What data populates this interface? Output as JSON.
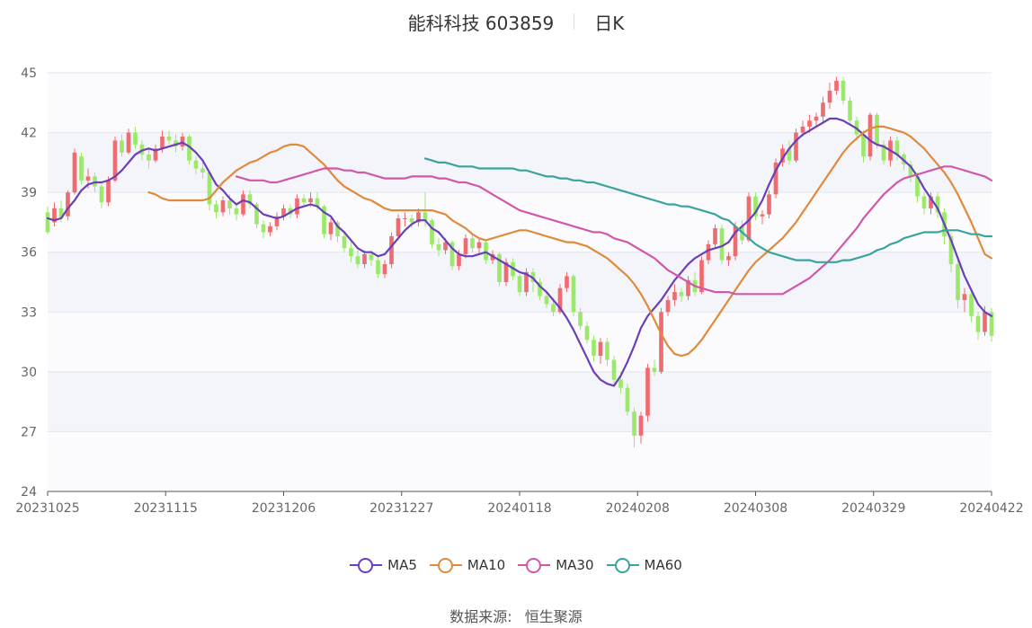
{
  "header": {
    "stock": "能科科技 603859",
    "period": "日K"
  },
  "source": {
    "label": "数据来源:",
    "value": "恒生聚源"
  },
  "colors": {
    "up": "#f06b6f",
    "down": "#9be86a",
    "MA5": "#6a3fb8",
    "MA10": "#e08a3c",
    "MA30": "#d058a8",
    "MA60": "#3aa39d"
  },
  "chart_data": {
    "type": "candlestick",
    "ylim": [
      24,
      45
    ],
    "y_ticks": [
      24,
      27,
      30,
      33,
      36,
      39,
      42,
      45
    ],
    "x_tick_labels": [
      "20231025",
      "20231115",
      "20231206",
      "20231227",
      "20240118",
      "20240208",
      "20240308",
      "20240329",
      "20240422"
    ],
    "grid": "horizontal alternating bands",
    "legend_placement": "bottom",
    "candles": [
      [
        38.0,
        37.0,
        38.3,
        36.9
      ],
      [
        37.5,
        38.2,
        38.5,
        37.3
      ],
      [
        38.2,
        37.7,
        38.6,
        37.5
      ],
      [
        37.8,
        39.0,
        39.1,
        37.6
      ],
      [
        39.0,
        41.0,
        41.2,
        38.9
      ],
      [
        40.8,
        39.6,
        41.0,
        39.4
      ],
      [
        39.6,
        39.8,
        40.2,
        39.2
      ],
      [
        39.8,
        39.3,
        40.0,
        39.0
      ],
      [
        39.3,
        38.5,
        39.4,
        38.2
      ],
      [
        38.5,
        39.6,
        39.8,
        38.3
      ],
      [
        39.6,
        41.6,
        41.8,
        39.5
      ],
      [
        41.6,
        41.0,
        41.9,
        40.8
      ],
      [
        41.0,
        42.0,
        42.2,
        40.9
      ],
      [
        42.0,
        41.4,
        42.3,
        41.2
      ],
      [
        41.4,
        40.9,
        41.6,
        40.6
      ],
      [
        40.9,
        40.6,
        41.2,
        40.2
      ],
      [
        40.6,
        41.2,
        41.4,
        40.5
      ],
      [
        41.2,
        41.8,
        42.1,
        41.0
      ],
      [
        41.8,
        41.6,
        42.1,
        41.4
      ],
      [
        41.6,
        41.3,
        41.9,
        41.0
      ],
      [
        41.3,
        41.8,
        42.0,
        41.1
      ],
      [
        41.8,
        40.6,
        41.9,
        40.4
      ],
      [
        40.6,
        40.2,
        40.8,
        39.9
      ],
      [
        40.2,
        40.0,
        40.5,
        39.7
      ],
      [
        40.0,
        38.4,
        40.1,
        38.1
      ],
      [
        38.4,
        38.0,
        38.6,
        37.7
      ],
      [
        38.0,
        38.6,
        38.8,
        37.8
      ],
      [
        38.6,
        38.2,
        38.9,
        37.9
      ],
      [
        38.2,
        37.9,
        38.4,
        37.6
      ],
      [
        37.9,
        38.9,
        39.1,
        37.8
      ],
      [
        38.9,
        38.4,
        39.1,
        38.2
      ],
      [
        38.4,
        37.4,
        38.5,
        37.2
      ],
      [
        37.4,
        37.0,
        37.6,
        36.7
      ],
      [
        37.0,
        37.3,
        37.5,
        36.8
      ],
      [
        37.3,
        37.8,
        38.0,
        37.1
      ],
      [
        37.8,
        38.2,
        38.4,
        37.6
      ],
      [
        38.2,
        37.9,
        38.4,
        37.7
      ],
      [
        37.9,
        38.7,
        38.9,
        37.7
      ],
      [
        38.7,
        38.5,
        38.9,
        38.3
      ],
      [
        38.5,
        38.7,
        39.0,
        38.3
      ],
      [
        38.7,
        38.3,
        39.0,
        38.1
      ],
      [
        38.3,
        36.9,
        38.4,
        36.7
      ],
      [
        36.9,
        37.5,
        37.7,
        36.6
      ],
      [
        37.5,
        36.8,
        37.6,
        36.5
      ],
      [
        36.8,
        36.2,
        37.0,
        36.0
      ],
      [
        36.2,
        35.8,
        36.5,
        35.5
      ],
      [
        35.8,
        35.4,
        36.1,
        35.2
      ],
      [
        35.4,
        35.9,
        36.1,
        35.2
      ],
      [
        35.9,
        35.6,
        36.1,
        35.3
      ],
      [
        35.6,
        34.9,
        35.8,
        34.7
      ],
      [
        34.9,
        35.4,
        35.6,
        34.7
      ],
      [
        35.4,
        36.8,
        37.0,
        35.2
      ],
      [
        36.8,
        37.7,
        37.9,
        36.6
      ],
      [
        37.7,
        37.7,
        38.0,
        37.3
      ],
      [
        37.7,
        37.5,
        37.9,
        37.2
      ],
      [
        37.5,
        38.0,
        38.2,
        37.3
      ],
      [
        38.0,
        37.6,
        39.0,
        37.3
      ],
      [
        37.6,
        36.4,
        37.7,
        36.2
      ],
      [
        36.4,
        36.1,
        36.7,
        35.8
      ],
      [
        36.1,
        36.5,
        36.7,
        35.9
      ],
      [
        36.5,
        35.3,
        36.6,
        35.1
      ],
      [
        35.3,
        35.9,
        36.1,
        35.1
      ],
      [
        35.9,
        36.7,
        36.9,
        35.7
      ],
      [
        36.7,
        36.2,
        36.9,
        36.0
      ],
      [
        36.2,
        36.5,
        36.7,
        35.9
      ],
      [
        36.5,
        35.6,
        36.6,
        35.4
      ],
      [
        35.6,
        35.9,
        36.1,
        35.4
      ],
      [
        35.9,
        34.5,
        36.0,
        34.3
      ],
      [
        34.5,
        35.5,
        35.7,
        34.3
      ],
      [
        35.5,
        34.8,
        35.7,
        34.6
      ],
      [
        34.8,
        34.0,
        34.9,
        33.8
      ],
      [
        34.0,
        35.0,
        35.2,
        33.8
      ],
      [
        35.0,
        34.5,
        35.2,
        34.0
      ],
      [
        34.5,
        33.8,
        34.7,
        33.6
      ],
      [
        33.8,
        33.4,
        34.0,
        33.2
      ],
      [
        33.4,
        33.0,
        33.7,
        32.8
      ],
      [
        33.0,
        34.2,
        34.4,
        32.9
      ],
      [
        34.2,
        34.8,
        35.0,
        34.0
      ],
      [
        34.8,
        33.0,
        34.9,
        32.8
      ],
      [
        33.0,
        32.3,
        33.2,
        32.1
      ],
      [
        32.3,
        31.6,
        32.5,
        31.4
      ],
      [
        31.6,
        30.8,
        31.8,
        30.5
      ],
      [
        30.8,
        31.5,
        31.7,
        30.4
      ],
      [
        31.5,
        30.6,
        31.7,
        30.3
      ],
      [
        30.6,
        29.6,
        30.8,
        29.3
      ],
      [
        29.6,
        29.2,
        30.0,
        28.9
      ],
      [
        29.2,
        28.0,
        29.4,
        27.8
      ],
      [
        28.0,
        26.8,
        28.2,
        26.2
      ],
      [
        26.8,
        27.8,
        28.0,
        26.4
      ],
      [
        27.8,
        30.2,
        30.4,
        27.5
      ],
      [
        30.2,
        30.0,
        30.6,
        29.8
      ],
      [
        30.0,
        33.0,
        33.2,
        29.9
      ],
      [
        33.0,
        33.6,
        33.8,
        32.8
      ],
      [
        33.6,
        34.0,
        34.4,
        33.3
      ],
      [
        34.0,
        33.8,
        34.2,
        33.5
      ],
      [
        33.8,
        34.6,
        34.8,
        33.6
      ],
      [
        34.6,
        34.0,
        35.0,
        33.8
      ],
      [
        34.0,
        35.6,
        35.8,
        33.9
      ],
      [
        35.6,
        36.4,
        36.6,
        35.4
      ],
      [
        36.4,
        37.2,
        37.4,
        36.2
      ],
      [
        37.2,
        35.6,
        37.4,
        35.4
      ],
      [
        35.6,
        35.8,
        36.0,
        35.3
      ],
      [
        35.8,
        37.3,
        37.5,
        35.6
      ],
      [
        37.3,
        36.6,
        37.6,
        36.4
      ],
      [
        36.6,
        38.8,
        39.0,
        36.5
      ],
      [
        38.8,
        37.8,
        39.0,
        37.6
      ],
      [
        37.8,
        37.9,
        38.1,
        37.4
      ],
      [
        37.9,
        38.9,
        39.1,
        37.7
      ],
      [
        38.9,
        40.5,
        40.7,
        38.7
      ],
      [
        40.5,
        41.2,
        41.4,
        40.3
      ],
      [
        41.2,
        40.6,
        41.6,
        40.4
      ],
      [
        40.6,
        42.0,
        42.2,
        40.5
      ],
      [
        42.0,
        42.3,
        42.6,
        41.8
      ],
      [
        42.3,
        42.6,
        42.9,
        42.0
      ],
      [
        42.6,
        42.8,
        43.0,
        42.3
      ],
      [
        42.8,
        43.5,
        43.8,
        42.5
      ],
      [
        43.5,
        44.1,
        44.5,
        43.2
      ],
      [
        44.1,
        44.6,
        44.8,
        43.9
      ],
      [
        44.6,
        43.6,
        44.8,
        43.4
      ],
      [
        43.6,
        42.6,
        43.8,
        42.4
      ],
      [
        42.6,
        41.9,
        42.8,
        41.6
      ],
      [
        41.9,
        40.8,
        42.1,
        40.5
      ],
      [
        40.8,
        42.9,
        43.0,
        40.6
      ],
      [
        42.9,
        41.4,
        43.0,
        41.2
      ],
      [
        41.4,
        40.6,
        41.6,
        40.4
      ],
      [
        40.6,
        41.6,
        41.8,
        40.3
      ],
      [
        41.6,
        40.9,
        41.8,
        40.6
      ],
      [
        40.9,
        40.4,
        41.0,
        40.1
      ],
      [
        40.4,
        39.8,
        40.6,
        39.5
      ],
      [
        39.8,
        38.8,
        40.0,
        38.5
      ],
      [
        38.8,
        38.2,
        39.0,
        37.9
      ],
      [
        38.2,
        38.8,
        39.0,
        37.9
      ],
      [
        38.8,
        38.0,
        39.0,
        37.7
      ],
      [
        38.0,
        36.8,
        38.2,
        36.4
      ],
      [
        36.8,
        35.4,
        37.0,
        35.0
      ],
      [
        35.4,
        33.6,
        35.6,
        33.2
      ],
      [
        33.6,
        33.9,
        34.2,
        33.0
      ],
      [
        33.9,
        32.8,
        34.1,
        32.5
      ],
      [
        32.8,
        32.0,
        33.0,
        31.6
      ],
      [
        32.0,
        33.0,
        33.3,
        31.8
      ],
      [
        33.0,
        31.8,
        33.2,
        31.5
      ]
    ],
    "series": [
      {
        "name": "MA5",
        "values": [
          37.7,
          37.6,
          37.7,
          38.2,
          38.6,
          39.1,
          39.4,
          39.5,
          39.5,
          39.6,
          39.8,
          40.1,
          40.5,
          40.9,
          41.1,
          41.2,
          41.1,
          41.2,
          41.3,
          41.4,
          41.5,
          41.3,
          41.0,
          40.6,
          40.0,
          39.4,
          39.1,
          38.7,
          38.4,
          38.6,
          38.5,
          38.2,
          37.9,
          37.8,
          37.7,
          37.8,
          38.0,
          38.2,
          38.3,
          38.4,
          38.3,
          38.0,
          37.8,
          37.3,
          37.0,
          36.6,
          36.2,
          36.0,
          36.0,
          35.8,
          35.9,
          36.3,
          36.7,
          37.1,
          37.4,
          37.6,
          37.6,
          37.2,
          37.0,
          36.6,
          36.2,
          35.9,
          35.8,
          35.8,
          35.9,
          36.0,
          35.8,
          35.6,
          35.4,
          35.2,
          35.0,
          34.9,
          34.7,
          34.3,
          34.0,
          33.6,
          33.2,
          32.7,
          32.1,
          31.4,
          30.7,
          30.0,
          29.6,
          29.4,
          29.3,
          29.8,
          30.5,
          31.3,
          32.2,
          32.8,
          33.2,
          33.6,
          34.1,
          34.6,
          35.0,
          35.4,
          35.7,
          35.9,
          36.1,
          36.2,
          36.3,
          36.5,
          37.0,
          37.3,
          37.6,
          38.0,
          38.6,
          39.4,
          40.1,
          40.7,
          41.2,
          41.6,
          41.9,
          42.1,
          42.3,
          42.5,
          42.7,
          42.7,
          42.6,
          42.4,
          42.2,
          41.9,
          41.6,
          41.4,
          41.3,
          41.1,
          40.9,
          40.6,
          40.3,
          39.8,
          39.2,
          38.7,
          38.2,
          37.4,
          36.6,
          35.7,
          34.8,
          34.1,
          33.4,
          33.0,
          32.8
        ]
      },
      {
        "name": "MA10",
        "values": [
          39.0,
          38.9,
          38.7,
          38.6,
          38.6,
          38.6,
          38.6,
          38.6,
          38.6,
          38.7,
          39.1,
          39.5,
          39.8,
          40.1,
          40.3,
          40.5,
          40.6,
          40.8,
          41.0,
          41.1,
          41.3,
          41.4,
          41.4,
          41.3,
          41.0,
          40.7,
          40.4,
          40.0,
          39.6,
          39.3,
          39.1,
          38.9,
          38.7,
          38.6,
          38.4,
          38.2,
          38.1,
          38.1,
          38.1,
          38.1,
          38.1,
          38.1,
          38.1,
          38.0,
          37.9,
          37.6,
          37.4,
          37.2,
          36.9,
          36.7,
          36.6,
          36.7,
          36.8,
          36.9,
          37.0,
          37.1,
          37.1,
          37.0,
          36.9,
          36.8,
          36.7,
          36.6,
          36.5,
          36.5,
          36.4,
          36.3,
          36.1,
          35.9,
          35.7,
          35.4,
          35.1,
          34.8,
          34.4,
          33.9,
          33.3,
          32.6,
          31.9,
          31.3,
          30.9,
          30.8,
          30.9,
          31.2,
          31.6,
          32.1,
          32.6,
          33.1,
          33.6,
          34.1,
          34.6,
          35.1,
          35.5,
          35.8,
          36.1,
          36.4,
          36.7,
          37.1,
          37.5,
          38.0,
          38.5,
          39.0,
          39.5,
          40.0,
          40.5,
          41.0,
          41.4,
          41.7,
          42.0,
          42.2,
          42.3,
          42.3,
          42.2,
          42.1,
          42.0,
          41.8,
          41.5,
          41.2,
          40.8,
          40.4,
          40.0,
          39.5,
          38.9,
          38.2,
          37.5,
          36.7,
          35.9,
          35.7
        ]
      },
      {
        "name": "MA30",
        "values": [
          39.8,
          39.7,
          39.6,
          39.6,
          39.6,
          39.5,
          39.5,
          39.6,
          39.7,
          39.8,
          39.9,
          40.0,
          40.1,
          40.2,
          40.2,
          40.2,
          40.1,
          40.1,
          40.0,
          40.0,
          39.9,
          39.8,
          39.7,
          39.7,
          39.7,
          39.7,
          39.8,
          39.8,
          39.8,
          39.8,
          39.7,
          39.7,
          39.6,
          39.5,
          39.5,
          39.4,
          39.3,
          39.1,
          38.9,
          38.7,
          38.5,
          38.3,
          38.1,
          38.0,
          37.9,
          37.8,
          37.7,
          37.6,
          37.5,
          37.4,
          37.3,
          37.2,
          37.1,
          37.0,
          37.0,
          36.9,
          36.7,
          36.6,
          36.5,
          36.3,
          36.1,
          35.9,
          35.7,
          35.4,
          35.1,
          34.9,
          34.7,
          34.5,
          34.3,
          34.2,
          34.1,
          34.0,
          34.0,
          34.0,
          33.9,
          33.9,
          33.9,
          33.9,
          33.9,
          33.9,
          33.9,
          33.9,
          34.1,
          34.3,
          34.5,
          34.7,
          35.0,
          35.3,
          35.6,
          36.0,
          36.4,
          36.8,
          37.2,
          37.7,
          38.1,
          38.5,
          38.9,
          39.2,
          39.5,
          39.7,
          39.8,
          39.9,
          40.0,
          40.1,
          40.2,
          40.3,
          40.3,
          40.2,
          40.1,
          40.0,
          39.9,
          39.8,
          39.6
        ]
      },
      {
        "name": "MA60",
        "values": [
          40.7,
          40.6,
          40.5,
          40.5,
          40.4,
          40.3,
          40.3,
          40.3,
          40.2,
          40.2,
          40.2,
          40.2,
          40.2,
          40.2,
          40.1,
          40.1,
          40.0,
          39.9,
          39.8,
          39.8,
          39.7,
          39.7,
          39.6,
          39.6,
          39.5,
          39.5,
          39.4,
          39.3,
          39.2,
          39.1,
          39.0,
          38.9,
          38.8,
          38.7,
          38.6,
          38.5,
          38.4,
          38.4,
          38.3,
          38.3,
          38.2,
          38.1,
          38.0,
          37.9,
          37.7,
          37.6,
          37.3,
          37.0,
          36.7,
          36.4,
          36.2,
          36.0,
          35.9,
          35.8,
          35.7,
          35.6,
          35.6,
          35.6,
          35.5,
          35.5,
          35.5,
          35.5,
          35.6,
          35.6,
          35.7,
          35.8,
          35.9,
          36.1,
          36.2,
          36.4,
          36.5,
          36.7,
          36.8,
          36.9,
          37.0,
          37.0,
          37.0,
          37.1,
          37.1,
          37.1,
          37.0,
          36.9,
          36.9,
          36.8,
          36.8
        ]
      }
    ]
  }
}
